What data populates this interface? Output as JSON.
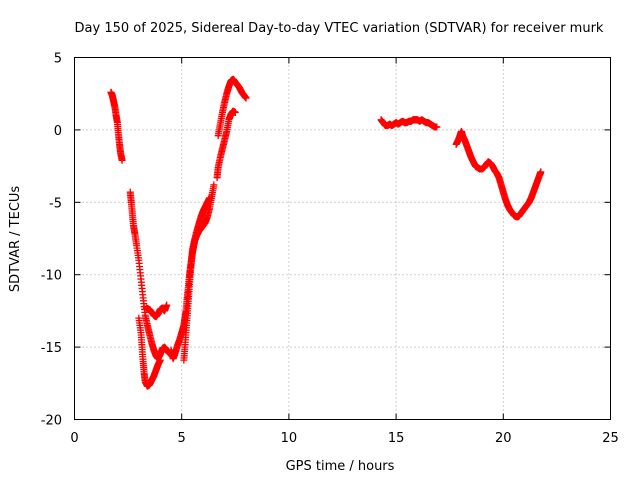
{
  "chart_data": {
    "type": "scatter",
    "title": "Day 150 of 2025, Sidereal Day-to-day VTEC variation (SDTVAR) for receiver murk",
    "xlabel": "GPS time / hours",
    "ylabel": "SDTVAR / TECUs",
    "xlim": [
      0,
      25
    ],
    "ylim": [
      -20,
      5
    ],
    "x_ticks": [
      0,
      5,
      10,
      15,
      20,
      25
    ],
    "y_ticks": [
      -20,
      -15,
      -10,
      -5,
      0,
      5
    ],
    "x_tick_labels": [
      "0",
      "5",
      "10",
      "15",
      "20",
      "25"
    ],
    "y_tick_labels": [
      "-20",
      "-15",
      "-10",
      "-5",
      "0",
      "5"
    ],
    "grid": true,
    "marker": "plus",
    "series": [
      {
        "name": "seg1",
        "color": "#ff0000",
        "points": [
          [
            1.7,
            2.6
          ],
          [
            1.76,
            2.4
          ],
          [
            1.82,
            2.0
          ],
          [
            1.88,
            1.6
          ],
          [
            1.94,
            1.0
          ],
          [
            2.0,
            0.5
          ],
          [
            2.05,
            -0.3
          ],
          [
            2.1,
            -1.0
          ],
          [
            2.15,
            -1.6
          ],
          [
            2.22,
            -2.1
          ]
        ]
      },
      {
        "name": "seg2",
        "color": "#ff0000",
        "points": [
          [
            2.6,
            -4.3
          ],
          [
            2.65,
            -5.0
          ],
          [
            2.7,
            -5.8
          ],
          [
            2.75,
            -6.6
          ],
          [
            2.82,
            -7.2
          ],
          [
            2.9,
            -8.0
          ],
          [
            3.0,
            -9.0
          ],
          [
            3.1,
            -10.3
          ],
          [
            3.2,
            -11.6
          ],
          [
            3.3,
            -12.8
          ],
          [
            3.4,
            -13.5
          ],
          [
            3.5,
            -14.1
          ],
          [
            3.6,
            -14.7
          ],
          [
            3.7,
            -15.2
          ],
          [
            3.8,
            -15.6
          ],
          [
            3.9,
            -15.8
          ],
          [
            4.0,
            -15.5
          ],
          [
            4.1,
            -15.1
          ],
          [
            4.2,
            -15.0
          ],
          [
            4.3,
            -15.2
          ],
          [
            4.4,
            -15.4
          ],
          [
            4.5,
            -15.5
          ]
        ]
      },
      {
        "name": "seg3",
        "color": "#ff0000",
        "points": [
          [
            3.0,
            -13.0
          ],
          [
            3.1,
            -14.0
          ],
          [
            3.15,
            -15.0
          ],
          [
            3.2,
            -16.0
          ],
          [
            3.25,
            -16.8
          ],
          [
            3.3,
            -17.4
          ],
          [
            3.4,
            -17.7
          ],
          [
            3.5,
            -17.6
          ],
          [
            3.6,
            -17.3
          ],
          [
            3.7,
            -17.0
          ],
          [
            3.8,
            -16.6
          ],
          [
            3.9,
            -16.2
          ],
          [
            4.0,
            -15.9
          ]
        ]
      },
      {
        "name": "seg4",
        "color": "#ff0000",
        "points": [
          [
            3.35,
            -12.3
          ],
          [
            3.5,
            -12.4
          ],
          [
            3.6,
            -12.6
          ],
          [
            3.7,
            -12.8
          ],
          [
            3.8,
            -12.9
          ],
          [
            3.9,
            -12.7
          ],
          [
            4.0,
            -12.4
          ],
          [
            4.1,
            -12.3
          ],
          [
            4.2,
            -12.5
          ],
          [
            4.3,
            -12.1
          ]
        ]
      },
      {
        "name": "seg5",
        "color": "#ff0000",
        "points": [
          [
            4.5,
            -15.2
          ],
          [
            4.6,
            -15.8
          ],
          [
            4.7,
            -15.4
          ],
          [
            4.8,
            -14.9
          ],
          [
            4.9,
            -14.5
          ],
          [
            5.0,
            -14.0
          ],
          [
            5.1,
            -13.5
          ],
          [
            5.15,
            -13.0
          ],
          [
            5.2,
            -12.5
          ],
          [
            5.25,
            -11.7
          ],
          [
            5.3,
            -11.0
          ],
          [
            5.35,
            -10.2
          ],
          [
            5.4,
            -9.6
          ],
          [
            5.45,
            -9.0
          ],
          [
            5.5,
            -8.5
          ],
          [
            5.55,
            -8.1
          ],
          [
            5.6,
            -7.7
          ],
          [
            5.7,
            -7.3
          ],
          [
            5.8,
            -7.0
          ],
          [
            5.9,
            -6.8
          ],
          [
            6.0,
            -6.6
          ],
          [
            6.1,
            -6.4
          ],
          [
            6.2,
            -6.0
          ],
          [
            6.3,
            -5.4
          ],
          [
            6.4,
            -4.6
          ],
          [
            6.5,
            -3.8
          ]
        ]
      },
      {
        "name": "seg6",
        "color": "#ff0000",
        "points": [
          [
            5.1,
            -15.9
          ],
          [
            5.15,
            -15.0
          ],
          [
            5.2,
            -14.0
          ],
          [
            5.25,
            -13.0
          ],
          [
            5.3,
            -12.0
          ],
          [
            5.35,
            -11.0
          ],
          [
            5.4,
            -10.0
          ],
          [
            5.45,
            -9.2
          ],
          [
            5.5,
            -8.3
          ],
          [
            5.6,
            -7.6
          ],
          [
            5.7,
            -7.0
          ],
          [
            5.8,
            -6.5
          ],
          [
            5.9,
            -6.0
          ],
          [
            6.0,
            -5.6
          ],
          [
            6.1,
            -5.3
          ],
          [
            6.2,
            -5.0
          ],
          [
            6.3,
            -4.7
          ]
        ]
      },
      {
        "name": "seg7",
        "color": "#ff0000",
        "points": [
          [
            6.65,
            -3.3
          ],
          [
            6.7,
            -2.6
          ],
          [
            6.8,
            -1.9
          ],
          [
            6.9,
            -1.3
          ],
          [
            7.0,
            -0.7
          ],
          [
            7.1,
            -0.1
          ],
          [
            7.2,
            0.7
          ],
          [
            7.3,
            1.1
          ],
          [
            7.4,
            1.3
          ],
          [
            7.5,
            1.2
          ]
        ]
      },
      {
        "name": "seg8",
        "color": "#ff0000",
        "points": [
          [
            6.7,
            -0.4
          ],
          [
            6.8,
            0.4
          ],
          [
            6.9,
            1.2
          ],
          [
            7.0,
            1.9
          ],
          [
            7.1,
            2.5
          ],
          [
            7.2,
            3.0
          ],
          [
            7.3,
            3.4
          ],
          [
            7.4,
            3.5
          ],
          [
            7.5,
            3.3
          ],
          [
            7.6,
            3.1
          ],
          [
            7.7,
            2.9
          ],
          [
            7.8,
            2.6
          ],
          [
            7.9,
            2.4
          ],
          [
            8.0,
            2.2
          ]
        ]
      },
      {
        "name": "seg9",
        "color": "#ff0000",
        "points": [
          [
            14.3,
            0.7
          ],
          [
            14.4,
            0.5
          ],
          [
            14.5,
            0.3
          ],
          [
            14.6,
            0.3
          ],
          [
            14.7,
            0.4
          ],
          [
            14.8,
            0.3
          ],
          [
            14.9,
            0.4
          ],
          [
            15.0,
            0.5
          ],
          [
            15.1,
            0.4
          ],
          [
            15.2,
            0.5
          ],
          [
            15.3,
            0.6
          ],
          [
            15.4,
            0.5
          ],
          [
            15.5,
            0.5
          ],
          [
            15.6,
            0.6
          ],
          [
            15.7,
            0.6
          ],
          [
            15.8,
            0.7
          ],
          [
            15.9,
            0.7
          ],
          [
            16.0,
            0.7
          ],
          [
            16.1,
            0.6
          ],
          [
            16.2,
            0.7
          ],
          [
            16.3,
            0.6
          ],
          [
            16.4,
            0.5
          ],
          [
            16.5,
            0.5
          ],
          [
            16.6,
            0.4
          ],
          [
            16.7,
            0.3
          ],
          [
            16.8,
            0.2
          ],
          [
            16.9,
            0.2
          ]
        ]
      },
      {
        "name": "seg10",
        "color": "#ff0000",
        "points": [
          [
            17.8,
            -1.0
          ],
          [
            17.9,
            -0.7
          ],
          [
            18.0,
            -0.3
          ],
          [
            18.05,
            -0.1
          ],
          [
            18.1,
            -0.4
          ],
          [
            18.2,
            -0.7
          ],
          [
            18.3,
            -1.1
          ],
          [
            18.4,
            -1.5
          ],
          [
            18.5,
            -1.9
          ],
          [
            18.6,
            -2.2
          ],
          [
            18.7,
            -2.5
          ],
          [
            18.8,
            -2.6
          ],
          [
            18.9,
            -2.7
          ],
          [
            19.0,
            -2.7
          ],
          [
            19.1,
            -2.6
          ],
          [
            19.2,
            -2.4
          ],
          [
            19.3,
            -2.2
          ],
          [
            19.4,
            -2.3
          ],
          [
            19.5,
            -2.5
          ],
          [
            19.6,
            -2.8
          ],
          [
            19.7,
            -3.0
          ],
          [
            19.8,
            -3.3
          ],
          [
            19.9,
            -3.8
          ],
          [
            20.0,
            -4.3
          ],
          [
            20.1,
            -4.8
          ],
          [
            20.2,
            -5.2
          ],
          [
            20.3,
            -5.5
          ],
          [
            20.4,
            -5.7
          ],
          [
            20.5,
            -5.9
          ],
          [
            20.6,
            -6.0
          ],
          [
            20.7,
            -6.0
          ],
          [
            20.8,
            -5.8
          ],
          [
            20.9,
            -5.6
          ],
          [
            21.0,
            -5.4
          ],
          [
            21.1,
            -5.2
          ],
          [
            21.2,
            -5.0
          ],
          [
            21.3,
            -4.7
          ],
          [
            21.4,
            -4.3
          ],
          [
            21.5,
            -3.9
          ],
          [
            21.6,
            -3.5
          ],
          [
            21.7,
            -3.1
          ],
          [
            21.75,
            -2.9
          ]
        ]
      }
    ]
  }
}
